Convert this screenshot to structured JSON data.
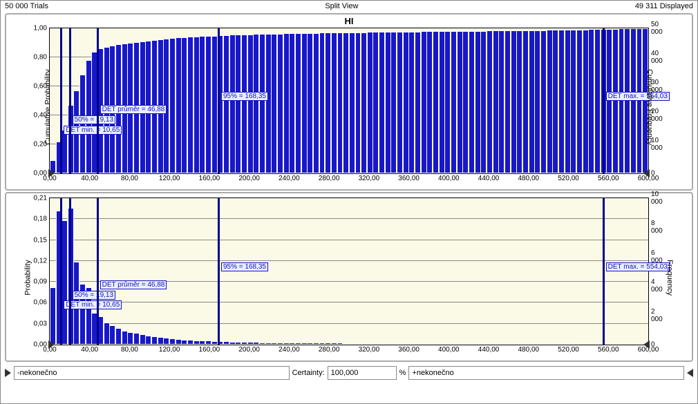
{
  "header": {
    "trials": "50 000 Trials",
    "mode": "Split View",
    "displayed": "49 311 Displayed"
  },
  "panel1": {
    "title": "HI",
    "y_left_label": "Cumulative Probability",
    "y_right_label": "Cumulative Frequency",
    "y_left_ticks": [
      "0,00",
      "0,20",
      "0,40",
      "0,60",
      "0,80",
      "1,00"
    ],
    "y_right_ticks": [
      "0",
      "10 000",
      "20 000",
      "30 000",
      "40 000",
      "50 000"
    ],
    "x_ticks": [
      "0,00",
      "40,00",
      "80,00",
      "120,00",
      "160,00",
      "200,00",
      "240,00",
      "280,00",
      "320,00",
      "360,00",
      "400,00",
      "440,00",
      "480,00",
      "520,00",
      "560,00",
      "600,00"
    ],
    "xlim": [
      0,
      600
    ],
    "ylim": [
      0,
      1
    ],
    "bar_color": "#1818c8",
    "bar_border": "#ffffff",
    "plot_bg": "#fafae6",
    "grid_color": "#888888",
    "bars_width": 6.2,
    "bars": [
      {
        "x": 3,
        "y": 0.09
      },
      {
        "x": 9,
        "y": 0.22
      },
      {
        "x": 15,
        "y": 0.3
      },
      {
        "x": 21,
        "y": 0.47
      },
      {
        "x": 27,
        "y": 0.57
      },
      {
        "x": 33,
        "y": 0.68
      },
      {
        "x": 39,
        "y": 0.78
      },
      {
        "x": 45,
        "y": 0.84
      },
      {
        "x": 51,
        "y": 0.86
      },
      {
        "x": 57,
        "y": 0.87
      },
      {
        "x": 63,
        "y": 0.88
      },
      {
        "x": 69,
        "y": 0.89
      },
      {
        "x": 75,
        "y": 0.895
      },
      {
        "x": 81,
        "y": 0.9
      },
      {
        "x": 87,
        "y": 0.905
      },
      {
        "x": 93,
        "y": 0.91
      },
      {
        "x": 99,
        "y": 0.915
      },
      {
        "x": 105,
        "y": 0.92
      },
      {
        "x": 111,
        "y": 0.925
      },
      {
        "x": 117,
        "y": 0.93
      },
      {
        "x": 123,
        "y": 0.934
      },
      {
        "x": 129,
        "y": 0.937
      },
      {
        "x": 135,
        "y": 0.94
      },
      {
        "x": 141,
        "y": 0.943
      },
      {
        "x": 147,
        "y": 0.945
      },
      {
        "x": 153,
        "y": 0.947
      },
      {
        "x": 159,
        "y": 0.949
      },
      {
        "x": 165,
        "y": 0.95
      },
      {
        "x": 171,
        "y": 0.952
      },
      {
        "x": 177,
        "y": 0.954
      },
      {
        "x": 183,
        "y": 0.9555
      },
      {
        "x": 189,
        "y": 0.957
      },
      {
        "x": 195,
        "y": 0.958
      },
      {
        "x": 201,
        "y": 0.959
      },
      {
        "x": 207,
        "y": 0.96
      },
      {
        "x": 213,
        "y": 0.961
      },
      {
        "x": 219,
        "y": 0.962
      },
      {
        "x": 225,
        "y": 0.963
      },
      {
        "x": 231,
        "y": 0.964
      },
      {
        "x": 237,
        "y": 0.965
      },
      {
        "x": 243,
        "y": 0.966
      },
      {
        "x": 249,
        "y": 0.967
      },
      {
        "x": 255,
        "y": 0.9675
      },
      {
        "x": 261,
        "y": 0.968
      },
      {
        "x": 267,
        "y": 0.9688
      },
      {
        "x": 273,
        "y": 0.9695
      },
      {
        "x": 279,
        "y": 0.97
      },
      {
        "x": 285,
        "y": 0.9708
      },
      {
        "x": 291,
        "y": 0.9715
      },
      {
        "x": 297,
        "y": 0.972
      },
      {
        "x": 303,
        "y": 0.9726
      },
      {
        "x": 309,
        "y": 0.973
      },
      {
        "x": 315,
        "y": 0.9737
      },
      {
        "x": 321,
        "y": 0.9742
      },
      {
        "x": 327,
        "y": 0.975
      },
      {
        "x": 333,
        "y": 0.9756
      },
      {
        "x": 339,
        "y": 0.976
      },
      {
        "x": 345,
        "y": 0.9765
      },
      {
        "x": 351,
        "y": 0.977
      },
      {
        "x": 357,
        "y": 0.9774
      },
      {
        "x": 363,
        "y": 0.978
      },
      {
        "x": 369,
        "y": 0.9784
      },
      {
        "x": 375,
        "y": 0.979
      },
      {
        "x": 381,
        "y": 0.9794
      },
      {
        "x": 387,
        "y": 0.98
      },
      {
        "x": 393,
        "y": 0.9804
      },
      {
        "x": 399,
        "y": 0.981
      },
      {
        "x": 405,
        "y": 0.9813
      },
      {
        "x": 411,
        "y": 0.9818
      },
      {
        "x": 417,
        "y": 0.982
      },
      {
        "x": 423,
        "y": 0.9824
      },
      {
        "x": 429,
        "y": 0.983
      },
      {
        "x": 435,
        "y": 0.9833
      },
      {
        "x": 441,
        "y": 0.984
      },
      {
        "x": 447,
        "y": 0.9843
      },
      {
        "x": 453,
        "y": 0.985
      },
      {
        "x": 459,
        "y": 0.9854
      },
      {
        "x": 465,
        "y": 0.986
      },
      {
        "x": 471,
        "y": 0.9862
      },
      {
        "x": 477,
        "y": 0.9865
      },
      {
        "x": 483,
        "y": 0.987
      },
      {
        "x": 489,
        "y": 0.9873
      },
      {
        "x": 495,
        "y": 0.988
      },
      {
        "x": 501,
        "y": 0.9883
      },
      {
        "x": 507,
        "y": 0.989
      },
      {
        "x": 513,
        "y": 0.9893
      },
      {
        "x": 519,
        "y": 0.99
      },
      {
        "x": 525,
        "y": 0.9904
      },
      {
        "x": 531,
        "y": 0.991
      },
      {
        "x": 537,
        "y": 0.992
      },
      {
        "x": 543,
        "y": 0.993
      },
      {
        "x": 549,
        "y": 0.994
      },
      {
        "x": 555,
        "y": 0.995
      },
      {
        "x": 561,
        "y": 0.996
      },
      {
        "x": 567,
        "y": 0.997
      },
      {
        "x": 573,
        "y": 0.998
      },
      {
        "x": 579,
        "y": 0.9985
      },
      {
        "x": 585,
        "y": 0.999
      },
      {
        "x": 591,
        "y": 0.9994
      },
      {
        "x": 597,
        "y": 1.0
      }
    ],
    "markers": [
      {
        "x": 10.65,
        "label": "DET min. = 10,65",
        "label_y": 0.33
      },
      {
        "x": 19.13,
        "label": "50% = 19,13",
        "label_y": 0.4
      },
      {
        "x": 46.88,
        "label": "DET průměr = 46,88",
        "label_y": 0.47
      },
      {
        "x": 168.35,
        "label": "95% = 168,35",
        "label_y": 0.56
      },
      {
        "x": 554.03,
        "label": "DET max. = 554,03",
        "label_y": 0.56
      }
    ]
  },
  "panel2": {
    "y_left_label": "Probability",
    "y_right_label": "Frequency",
    "y_left_ticks": [
      "0,00",
      "0,03",
      "0,06",
      "0,09",
      "0,12",
      "0,15",
      "0,18",
      "0,21"
    ],
    "y_right_ticks": [
      "0",
      "2 000",
      "4 000",
      "6 000",
      "8 000",
      "10 000"
    ],
    "x_ticks": [
      "0,00",
      "40,00",
      "80,00",
      "120,00",
      "160,00",
      "200,00",
      "240,00",
      "280,00",
      "320,00",
      "360,00",
      "400,00",
      "440,00",
      "480,00",
      "520,00",
      "560,00",
      "600,00"
    ],
    "xlim": [
      0,
      600
    ],
    "ylim": [
      0,
      0.23
    ],
    "bar_color": "#1818c8",
    "bars_width": 6.2,
    "bars": [
      {
        "x": 3,
        "y": 0.09
      },
      {
        "x": 9,
        "y": 0.21
      },
      {
        "x": 15,
        "y": 0.195
      },
      {
        "x": 21,
        "y": 0.215
      },
      {
        "x": 27,
        "y": 0.13
      },
      {
        "x": 33,
        "y": 0.095
      },
      {
        "x": 39,
        "y": 0.09
      },
      {
        "x": 45,
        "y": 0.05
      },
      {
        "x": 51,
        "y": 0.045
      },
      {
        "x": 57,
        "y": 0.035
      },
      {
        "x": 63,
        "y": 0.03
      },
      {
        "x": 69,
        "y": 0.026
      },
      {
        "x": 75,
        "y": 0.022
      },
      {
        "x": 81,
        "y": 0.02
      },
      {
        "x": 87,
        "y": 0.018
      },
      {
        "x": 93,
        "y": 0.016
      },
      {
        "x": 99,
        "y": 0.014
      },
      {
        "x": 105,
        "y": 0.013
      },
      {
        "x": 111,
        "y": 0.012
      },
      {
        "x": 117,
        "y": 0.011
      },
      {
        "x": 123,
        "y": 0.01
      },
      {
        "x": 129,
        "y": 0.009
      },
      {
        "x": 135,
        "y": 0.008
      },
      {
        "x": 141,
        "y": 0.0075
      },
      {
        "x": 147,
        "y": 0.007
      },
      {
        "x": 153,
        "y": 0.0065
      },
      {
        "x": 159,
        "y": 0.006
      },
      {
        "x": 165,
        "y": 0.0055
      },
      {
        "x": 171,
        "y": 0.005
      },
      {
        "x": 177,
        "y": 0.005
      },
      {
        "x": 183,
        "y": 0.0045
      },
      {
        "x": 189,
        "y": 0.0045
      },
      {
        "x": 195,
        "y": 0.004
      },
      {
        "x": 201,
        "y": 0.004
      },
      {
        "x": 207,
        "y": 0.004
      },
      {
        "x": 213,
        "y": 0.0035
      },
      {
        "x": 219,
        "y": 0.0035
      },
      {
        "x": 225,
        "y": 0.003
      },
      {
        "x": 231,
        "y": 0.003
      },
      {
        "x": 237,
        "y": 0.003
      },
      {
        "x": 243,
        "y": 0.003
      },
      {
        "x": 249,
        "y": 0.003
      },
      {
        "x": 255,
        "y": 0.003
      },
      {
        "x": 261,
        "y": 0.003
      },
      {
        "x": 267,
        "y": 0.003
      },
      {
        "x": 273,
        "y": 0.003
      },
      {
        "x": 279,
        "y": 0.003
      },
      {
        "x": 285,
        "y": 0.003
      },
      {
        "x": 291,
        "y": 0.003
      },
      {
        "x": 297,
        "y": 0.002
      },
      {
        "x": 303,
        "y": 0.002
      },
      {
        "x": 309,
        "y": 0.002
      },
      {
        "x": 315,
        "y": 0.002
      },
      {
        "x": 321,
        "y": 0.002
      },
      {
        "x": 327,
        "y": 0.002
      },
      {
        "x": 333,
        "y": 0.002
      },
      {
        "x": 339,
        "y": 0.002
      },
      {
        "x": 345,
        "y": 0.002
      },
      {
        "x": 351,
        "y": 0.001
      },
      {
        "x": 357,
        "y": 0.001
      },
      {
        "x": 363,
        "y": 0.001
      },
      {
        "x": 369,
        "y": 0.001
      },
      {
        "x": 375,
        "y": 0.001
      },
      {
        "x": 381,
        "y": 0.001
      },
      {
        "x": 387,
        "y": 0.001
      },
      {
        "x": 393,
        "y": 0.001
      },
      {
        "x": 399,
        "y": 0.001
      },
      {
        "x": 405,
        "y": 0.001
      },
      {
        "x": 411,
        "y": 0.001
      },
      {
        "x": 417,
        "y": 0.001
      },
      {
        "x": 423,
        "y": 0.001
      },
      {
        "x": 429,
        "y": 0.001
      },
      {
        "x": 435,
        "y": 0.001
      },
      {
        "x": 441,
        "y": 0.001
      },
      {
        "x": 447,
        "y": 0.001
      },
      {
        "x": 453,
        "y": 0.001
      },
      {
        "x": 459,
        "y": 0.001
      },
      {
        "x": 465,
        "y": 0.001
      },
      {
        "x": 471,
        "y": 0.0005
      },
      {
        "x": 477,
        "y": 0.0005
      },
      {
        "x": 483,
        "y": 0.0005
      },
      {
        "x": 489,
        "y": 0.0005
      },
      {
        "x": 495,
        "y": 0.0005
      },
      {
        "x": 501,
        "y": 0.0005
      },
      {
        "x": 507,
        "y": 0.0005
      },
      {
        "x": 513,
        "y": 0.0005
      },
      {
        "x": 519,
        "y": 0.0005
      },
      {
        "x": 525,
        "y": 0.0005
      }
    ],
    "markers": [
      {
        "x": 10.65,
        "label": "DET min. = 10,65",
        "label_y": 0.3
      },
      {
        "x": 19.13,
        "label": "50% = 19,13",
        "label_y": 0.37
      },
      {
        "x": 46.88,
        "label": "DET průměr = 46,88",
        "label_y": 0.44
      },
      {
        "x": 168.35,
        "label": "95% = 168,35",
        "label_y": 0.56
      },
      {
        "x": 554.03,
        "label": "DET max. = 554,03",
        "label_y": 0.56
      }
    ]
  },
  "footer": {
    "left_input": "-nekonečno",
    "certainty_label": "Certainty:",
    "certainty_value": "100,000",
    "percent": "%",
    "right_input": "+nekonečno"
  }
}
